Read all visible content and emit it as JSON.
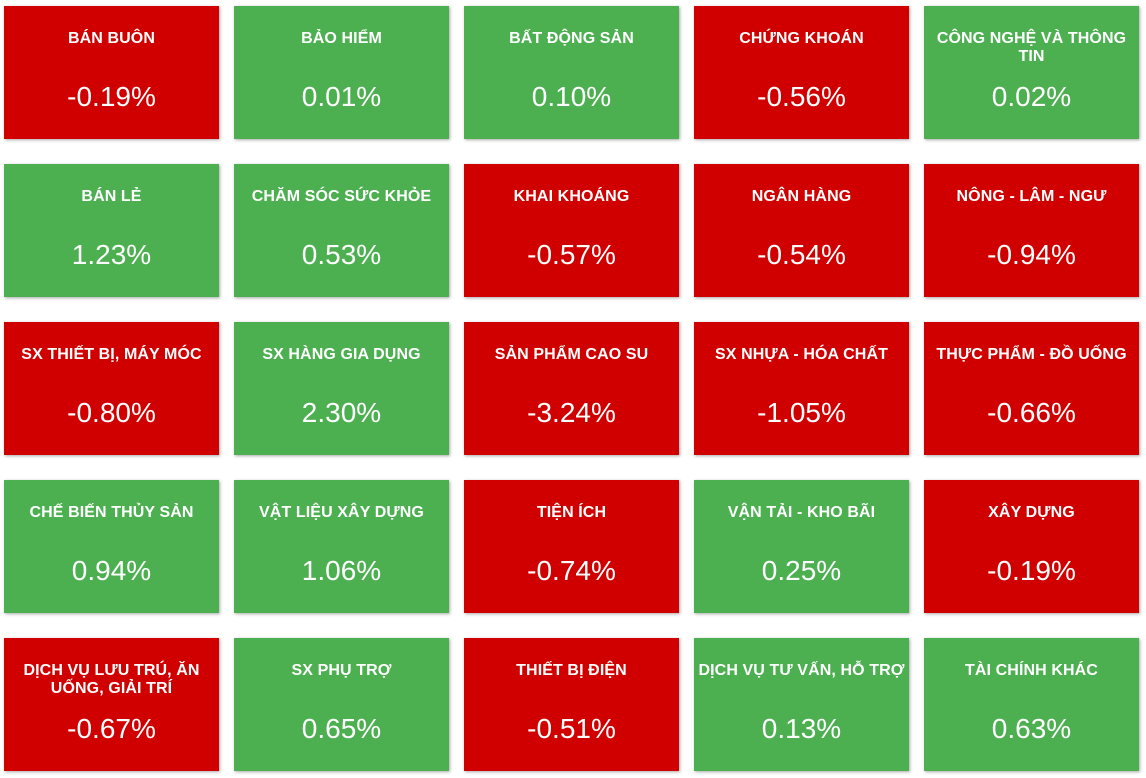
{
  "colors": {
    "down": "#d00000",
    "up": "#4caf50",
    "text": "#ffffff"
  },
  "sectors": [
    {
      "name": "BÁN BUÔN",
      "change": "-0.19%",
      "direction": "down"
    },
    {
      "name": "BẢO HIỂM",
      "change": "0.01%",
      "direction": "up"
    },
    {
      "name": "BẤT ĐỘNG SẢN",
      "change": "0.10%",
      "direction": "up"
    },
    {
      "name": "CHỨNG KHOÁN",
      "change": "-0.56%",
      "direction": "down"
    },
    {
      "name": "CÔNG NGHỆ VÀ THÔNG TIN",
      "change": "0.02%",
      "direction": "up"
    },
    {
      "name": "BÁN LẺ",
      "change": "1.23%",
      "direction": "up"
    },
    {
      "name": "CHĂM SÓC SỨC KHỎE",
      "change": "0.53%",
      "direction": "up"
    },
    {
      "name": "KHAI KHOÁNG",
      "change": "-0.57%",
      "direction": "down"
    },
    {
      "name": "NGÂN HÀNG",
      "change": "-0.54%",
      "direction": "down"
    },
    {
      "name": "NÔNG - LÂM - NGƯ",
      "change": "-0.94%",
      "direction": "down"
    },
    {
      "name": "SX THIẾT BỊ, MÁY MÓC",
      "change": "-0.80%",
      "direction": "down"
    },
    {
      "name": "SX HÀNG GIA DỤNG",
      "change": "2.30%",
      "direction": "up"
    },
    {
      "name": "SẢN PHẨM CAO SU",
      "change": "-3.24%",
      "direction": "down"
    },
    {
      "name": "SX NHỰA - HÓA CHẤT",
      "change": "-1.05%",
      "direction": "down"
    },
    {
      "name": "THỰC PHẨM - ĐỒ UỐNG",
      "change": "-0.66%",
      "direction": "down"
    },
    {
      "name": "CHẾ BIẾN THỦY SẢN",
      "change": "0.94%",
      "direction": "up"
    },
    {
      "name": "VẬT LIỆU XÂY DỰNG",
      "change": "1.06%",
      "direction": "up"
    },
    {
      "name": "TIỆN ÍCH",
      "change": "-0.74%",
      "direction": "down"
    },
    {
      "name": "VẬN TẢI - KHO BÃI",
      "change": "0.25%",
      "direction": "up"
    },
    {
      "name": "XÂY DỰNG",
      "change": "-0.19%",
      "direction": "down"
    },
    {
      "name": "DỊCH VỤ LƯU TRÚ, ĂN UỐNG, GIẢI TRÍ",
      "change": "-0.67%",
      "direction": "down"
    },
    {
      "name": "SX PHỤ TRỢ",
      "change": "0.65%",
      "direction": "up"
    },
    {
      "name": "THIẾT BỊ ĐIỆN",
      "change": "-0.51%",
      "direction": "down"
    },
    {
      "name": "DỊCH VỤ TƯ VẤN, HỖ TRỢ",
      "change": "0.13%",
      "direction": "up"
    },
    {
      "name": "TÀI CHÍNH KHÁC",
      "change": "0.63%",
      "direction": "up"
    }
  ]
}
